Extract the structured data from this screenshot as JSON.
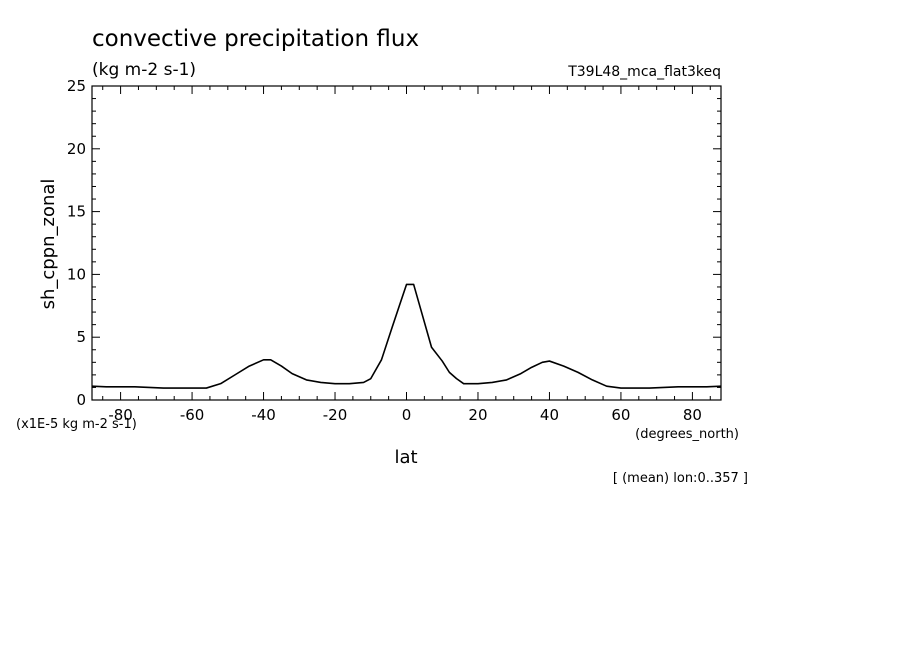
{
  "chart_data": {
    "type": "line",
    "title": "convective precipitation flux",
    "subtitle": "(kg m-2 s-1)",
    "experiment": "T39L48_mca_flat3keq",
    "xlabel": "lat",
    "xunits": "(degrees_north)",
    "ylabel": "sh_cppn_zonal",
    "yscale_note": "(x1E-5 kg m-2 s-1)",
    "footnote": "[ (mean) lon:0..357 ]",
    "xlim": [
      -88,
      88
    ],
    "ylim": [
      0,
      25
    ],
    "xticks": [
      -80,
      -60,
      -40,
      -20,
      0,
      20,
      40,
      60,
      80
    ],
    "xtick_labels": [
      "-80",
      "-60",
      "-40",
      "-20",
      "0",
      "20",
      "40",
      "60",
      "80"
    ],
    "yticks": [
      0,
      5,
      10,
      15,
      20,
      25
    ],
    "ytick_labels": [
      "0",
      "5",
      "10",
      "15",
      "20",
      "25"
    ],
    "grid": false,
    "series": [
      {
        "x": [
          -88,
          -84,
          -80,
          -76,
          -72,
          -68,
          -64,
          -60,
          -56,
          -52,
          -48,
          -44,
          -40,
          -38,
          -35,
          -32,
          -28,
          -24,
          -20,
          -16,
          -14,
          -12,
          -10,
          -7,
          -4,
          -2,
          0,
          2,
          4,
          7,
          10,
          12,
          14,
          16,
          20,
          24,
          28,
          32,
          35,
          38,
          40,
          44,
          48,
          52,
          56,
          60,
          64,
          68,
          72,
          76,
          80,
          84,
          88
        ],
        "y": [
          1.1,
          1.05,
          1.05,
          1.05,
          1.0,
          0.95,
          0.95,
          0.95,
          0.95,
          1.3,
          2.0,
          2.7,
          3.2,
          3.2,
          2.7,
          2.1,
          1.6,
          1.4,
          1.3,
          1.3,
          1.35,
          1.4,
          1.7,
          3.2,
          5.8,
          7.5,
          9.2,
          9.2,
          7.2,
          4.2,
          3.1,
          2.2,
          1.7,
          1.3,
          1.3,
          1.4,
          1.6,
          2.1,
          2.6,
          3.0,
          3.1,
          2.7,
          2.2,
          1.6,
          1.1,
          0.95,
          0.95,
          0.95,
          1.0,
          1.05,
          1.05,
          1.05,
          1.1
        ]
      }
    ]
  }
}
